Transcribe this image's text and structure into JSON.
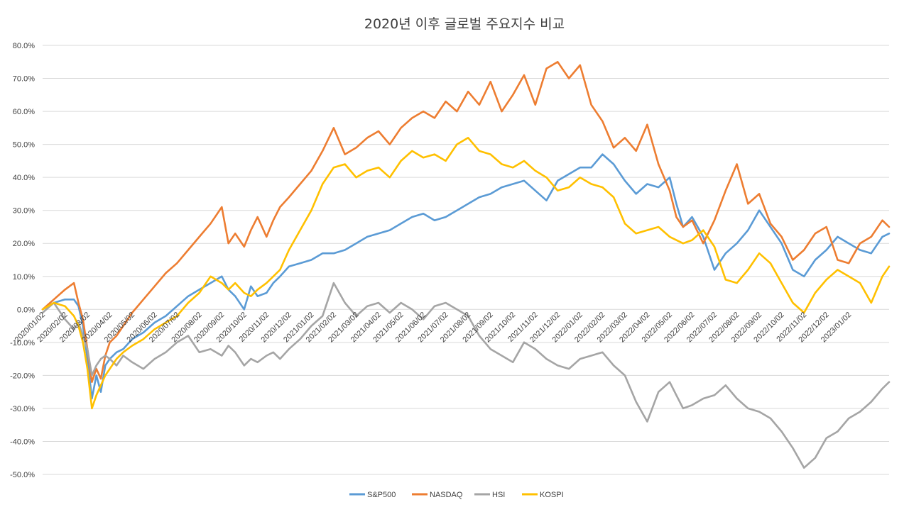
{
  "chart_data": {
    "type": "line",
    "title": "2020년 이후 글로벌 주요지수 비교",
    "xlabel": "",
    "ylabel": "",
    "ylim": [
      -50,
      80
    ],
    "y_ticks": [
      -50,
      -40,
      -30,
      -20,
      -10,
      0,
      10,
      20,
      30,
      40,
      50,
      60,
      70,
      80
    ],
    "y_tick_labels": [
      "-50.0%",
      "-40.0%",
      "-30.0%",
      "-20.0%",
      "-10.0%",
      "0.0%",
      "10.0%",
      "20.0%",
      "30.0%",
      "40.0%",
      "50.0%",
      "60.0%",
      "70.0%",
      "80.0%"
    ],
    "x_tick_labels": [
      "2020/01/02",
      "2020/02/02",
      "2020/03/02",
      "2020/04/02",
      "2020/05/02",
      "2020/06/02",
      "2020/07/02",
      "2020/08/02",
      "2020/09/02",
      "2020/10/02",
      "2020/11/02",
      "2020/12/02",
      "2021/01/02",
      "2021/02/02",
      "2021/03/02",
      "2021/04/02",
      "2021/05/02",
      "2021/06/02",
      "2021/07/02",
      "2021/08/02",
      "2021/09/02",
      "2021/10/02",
      "2021/11/02",
      "2021/12/02",
      "2022/01/02",
      "2022/02/02",
      "2022/03/02",
      "2022/04/02",
      "2022/05/02",
      "2022/06/02",
      "2022/07/02",
      "2022/08/02",
      "2022/09/02",
      "2022/10/02",
      "2022/11/02",
      "2022/12/02",
      "2023/01/02"
    ],
    "x_month_index": [
      0,
      1,
      2,
      3,
      4,
      5,
      6,
      7,
      8,
      9,
      10,
      11,
      12,
      13,
      14,
      15,
      16,
      17,
      18,
      19,
      20,
      21,
      22,
      23,
      24,
      25,
      26,
      27,
      28,
      29,
      30,
      31,
      32,
      33,
      34,
      35,
      36
    ],
    "x_range": [
      0,
      37.8
    ],
    "grid": true,
    "legend_position": "bottom",
    "series": [
      {
        "name": "S&P500",
        "color": "#5B9BD5",
        "x": [
          0,
          0.5,
          1,
          1.4,
          1.6,
          1.8,
          2,
          2.2,
          2.4,
          2.6,
          2.8,
          3,
          3.3,
          3.6,
          4,
          4.5,
          5,
          5.5,
          6,
          6.5,
          7,
          7.5,
          8,
          8.3,
          8.6,
          9,
          9.3,
          9.6,
          10,
          10.3,
          10.6,
          11,
          11.5,
          12,
          12.5,
          13,
          13.5,
          14,
          14.5,
          15,
          15.5,
          16,
          16.5,
          17,
          17.5,
          18,
          18.5,
          19,
          19.5,
          20,
          20.5,
          21,
          21.5,
          22,
          22.5,
          23,
          23.5,
          24,
          24.5,
          25,
          25.5,
          26,
          26.5,
          27,
          27.5,
          28,
          28.3,
          28.6,
          29,
          29.5,
          30,
          30.5,
          31,
          31.5,
          32,
          32.5,
          33,
          33.5,
          34,
          34.5,
          35,
          35.5,
          36,
          36.5,
          37,
          37.5,
          37.8
        ],
        "values": [
          0,
          2,
          3,
          3,
          1,
          -5,
          -15,
          -27,
          -20,
          -25,
          -17,
          -15,
          -13,
          -12,
          -9,
          -7,
          -4,
          -2,
          1,
          4,
          6,
          8,
          10,
          6,
          4,
          0,
          7,
          4,
          5,
          8,
          10,
          13,
          14,
          15,
          17,
          17,
          18,
          20,
          22,
          23,
          24,
          26,
          28,
          29,
          27,
          28,
          30,
          32,
          34,
          35,
          37,
          38,
          39,
          36,
          33,
          39,
          41,
          43,
          43,
          47,
          44,
          39,
          35,
          38,
          37,
          40,
          32,
          25,
          28,
          22,
          12,
          17,
          20,
          24,
          30,
          25,
          20,
          12,
          10,
          15,
          18,
          22,
          20,
          18,
          17,
          22,
          23
        ]
      },
      {
        "name": "NASDAQ",
        "color": "#ED7D31",
        "x": [
          0,
          0.5,
          1,
          1.4,
          1.6,
          1.8,
          2,
          2.2,
          2.4,
          2.6,
          2.8,
          3,
          3.3,
          3.6,
          4,
          4.5,
          5,
          5.5,
          6,
          6.5,
          7,
          7.5,
          8,
          8.3,
          8.6,
          9,
          9.3,
          9.6,
          10,
          10.3,
          10.6,
          11,
          11.5,
          12,
          12.5,
          13,
          13.5,
          14,
          14.5,
          15,
          15.5,
          16,
          16.5,
          17,
          17.5,
          18,
          18.5,
          19,
          19.5,
          20,
          20.5,
          21,
          21.5,
          22,
          22.5,
          23,
          23.5,
          24,
          24.5,
          25,
          25.5,
          26,
          26.5,
          27,
          27.5,
          28,
          28.3,
          28.6,
          29,
          29.5,
          30,
          30.5,
          31,
          31.5,
          32,
          32.5,
          33,
          33.5,
          34,
          34.5,
          35,
          35.5,
          36,
          36.5,
          37,
          37.5,
          37.8
        ],
        "values": [
          0,
          3,
          6,
          8,
          2,
          -3,
          -12,
          -22,
          -18,
          -21,
          -14,
          -10,
          -8,
          -5,
          -1,
          3,
          7,
          11,
          14,
          18,
          22,
          26,
          31,
          20,
          23,
          19,
          24,
          28,
          22,
          27,
          31,
          34,
          38,
          42,
          48,
          55,
          47,
          49,
          52,
          54,
          50,
          55,
          58,
          60,
          58,
          63,
          60,
          66,
          62,
          69,
          60,
          65,
          71,
          62,
          73,
          75,
          70,
          74,
          62,
          57,
          49,
          52,
          48,
          56,
          44,
          36,
          28,
          25,
          27,
          20,
          27,
          36,
          44,
          32,
          35,
          26,
          22,
          15,
          18,
          23,
          25,
          15,
          14,
          20,
          22,
          27,
          25
        ]
      },
      {
        "name": "HSI",
        "color": "#A5A5A5",
        "x": [
          0,
          0.5,
          1,
          1.4,
          1.6,
          1.8,
          2,
          2.2,
          2.4,
          2.6,
          2.8,
          3,
          3.3,
          3.6,
          4,
          4.5,
          5,
          5.5,
          6,
          6.5,
          7,
          7.5,
          8,
          8.3,
          8.6,
          9,
          9.3,
          9.6,
          10,
          10.3,
          10.6,
          11,
          11.5,
          12,
          12.5,
          13,
          13.5,
          14,
          14.5,
          15,
          15.5,
          16,
          16.5,
          17,
          17.5,
          18,
          18.5,
          19,
          19.5,
          20,
          20.5,
          21,
          21.5,
          22,
          22.5,
          23,
          23.5,
          24,
          24.5,
          25,
          25.5,
          26,
          26.5,
          27,
          27.5,
          28,
          28.3,
          28.6,
          29,
          29.5,
          30,
          30.5,
          31,
          31.5,
          32,
          32.5,
          33,
          33.5,
          34,
          34.5,
          35,
          35.5,
          36,
          36.5,
          37,
          37.5,
          37.8
        ],
        "values": [
          -1,
          2,
          -3,
          -6,
          -4,
          -8,
          -12,
          -20,
          -17,
          -15,
          -14,
          -15,
          -17,
          -14,
          -16,
          -18,
          -15,
          -13,
          -10,
          -8,
          -13,
          -12,
          -14,
          -11,
          -13,
          -17,
          -15,
          -16,
          -14,
          -13,
          -15,
          -12,
          -9,
          -5,
          -2,
          8,
          2,
          -2,
          1,
          2,
          -1,
          2,
          0,
          -3,
          1,
          2,
          0,
          -2,
          -8,
          -12,
          -14,
          -16,
          -10,
          -12,
          -15,
          -17,
          -18,
          -15,
          -14,
          -13,
          -17,
          -20,
          -28,
          -34,
          -25,
          -22,
          -26,
          -30,
          -29,
          -27,
          -26,
          -23,
          -27,
          -30,
          -31,
          -33,
          -37,
          -42,
          -48,
          -45,
          -39,
          -37,
          -33,
          -31,
          -28,
          -24,
          -22
        ]
      },
      {
        "name": "KOSPI",
        "color": "#FFC000",
        "x": [
          0,
          0.5,
          1,
          1.4,
          1.6,
          1.8,
          2,
          2.2,
          2.4,
          2.6,
          2.8,
          3,
          3.3,
          3.6,
          4,
          4.5,
          5,
          5.5,
          6,
          6.5,
          7,
          7.5,
          8,
          8.3,
          8.6,
          9,
          9.3,
          9.6,
          10,
          10.3,
          10.6,
          11,
          11.5,
          12,
          12.5,
          13,
          13.5,
          14,
          14.5,
          15,
          15.5,
          16,
          16.5,
          17,
          17.5,
          18,
          18.5,
          19,
          19.5,
          20,
          20.5,
          21,
          21.5,
          22,
          22.5,
          23,
          23.5,
          24,
          24.5,
          25,
          25.5,
          26,
          26.5,
          27,
          27.5,
          28,
          28.3,
          28.6,
          29,
          29.5,
          30,
          30.5,
          31,
          31.5,
          32,
          32.5,
          33,
          33.5,
          34,
          34.5,
          35,
          35.5,
          36,
          36.5,
          37,
          37.5,
          37.8
        ],
        "values": [
          0,
          2,
          1,
          -2,
          -5,
          -10,
          -18,
          -30,
          -26,
          -23,
          -20,
          -18,
          -15,
          -13,
          -11,
          -9,
          -6,
          -4,
          -2,
          2,
          5,
          10,
          8,
          6,
          8,
          5,
          4,
          6,
          8,
          10,
          12,
          18,
          24,
          30,
          38,
          43,
          44,
          40,
          42,
          43,
          40,
          45,
          48,
          46,
          47,
          45,
          50,
          52,
          48,
          47,
          44,
          43,
          45,
          42,
          40,
          36,
          37,
          40,
          38,
          37,
          34,
          26,
          23,
          24,
          25,
          22,
          21,
          20,
          21,
          24,
          19,
          9,
          8,
          12,
          17,
          14,
          8,
          2,
          -1,
          5,
          9,
          12,
          10,
          8,
          2,
          10,
          13
        ]
      }
    ]
  }
}
